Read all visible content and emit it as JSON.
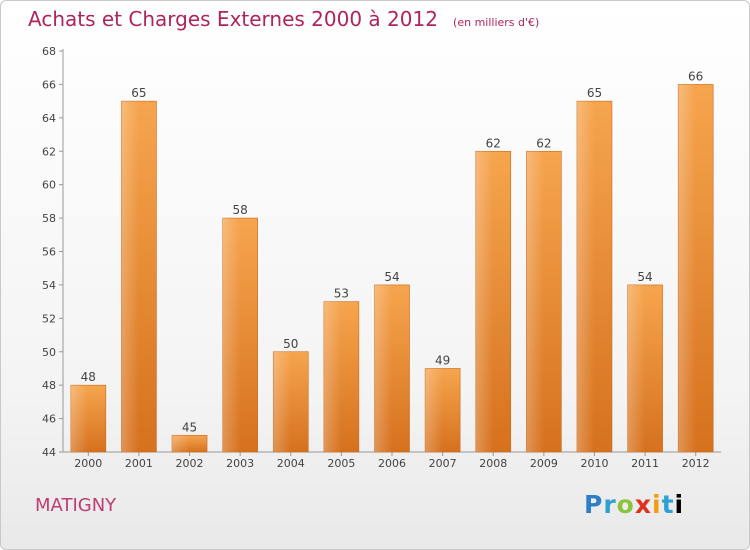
{
  "header": {
    "title": "Achats et Charges Externes 2000 à 2012",
    "unit": "(en milliers d'€)"
  },
  "footer": {
    "commune": "MATIGNY",
    "logo": "Proxiti"
  },
  "colors": {
    "bar": "#f0943a",
    "title": "#b0245e",
    "label": "#444444"
  },
  "chart_data": {
    "type": "bar",
    "title": "Achats et Charges Externes 2000 à 2012",
    "subtitle": "(en milliers d'€)",
    "xlabel": "",
    "ylabel": "",
    "categories": [
      "2000",
      "2001",
      "2002",
      "2003",
      "2004",
      "2005",
      "2006",
      "2007",
      "2008",
      "2009",
      "2010",
      "2011",
      "2012"
    ],
    "values": [
      48,
      65,
      45,
      58,
      50,
      53,
      54,
      49,
      62,
      62,
      65,
      54,
      66
    ],
    "ylim": [
      44,
      68
    ],
    "yticks": [
      44,
      46,
      48,
      50,
      52,
      54,
      56,
      58,
      60,
      62,
      64,
      66,
      68
    ],
    "grid": false,
    "data_labels": true
  }
}
